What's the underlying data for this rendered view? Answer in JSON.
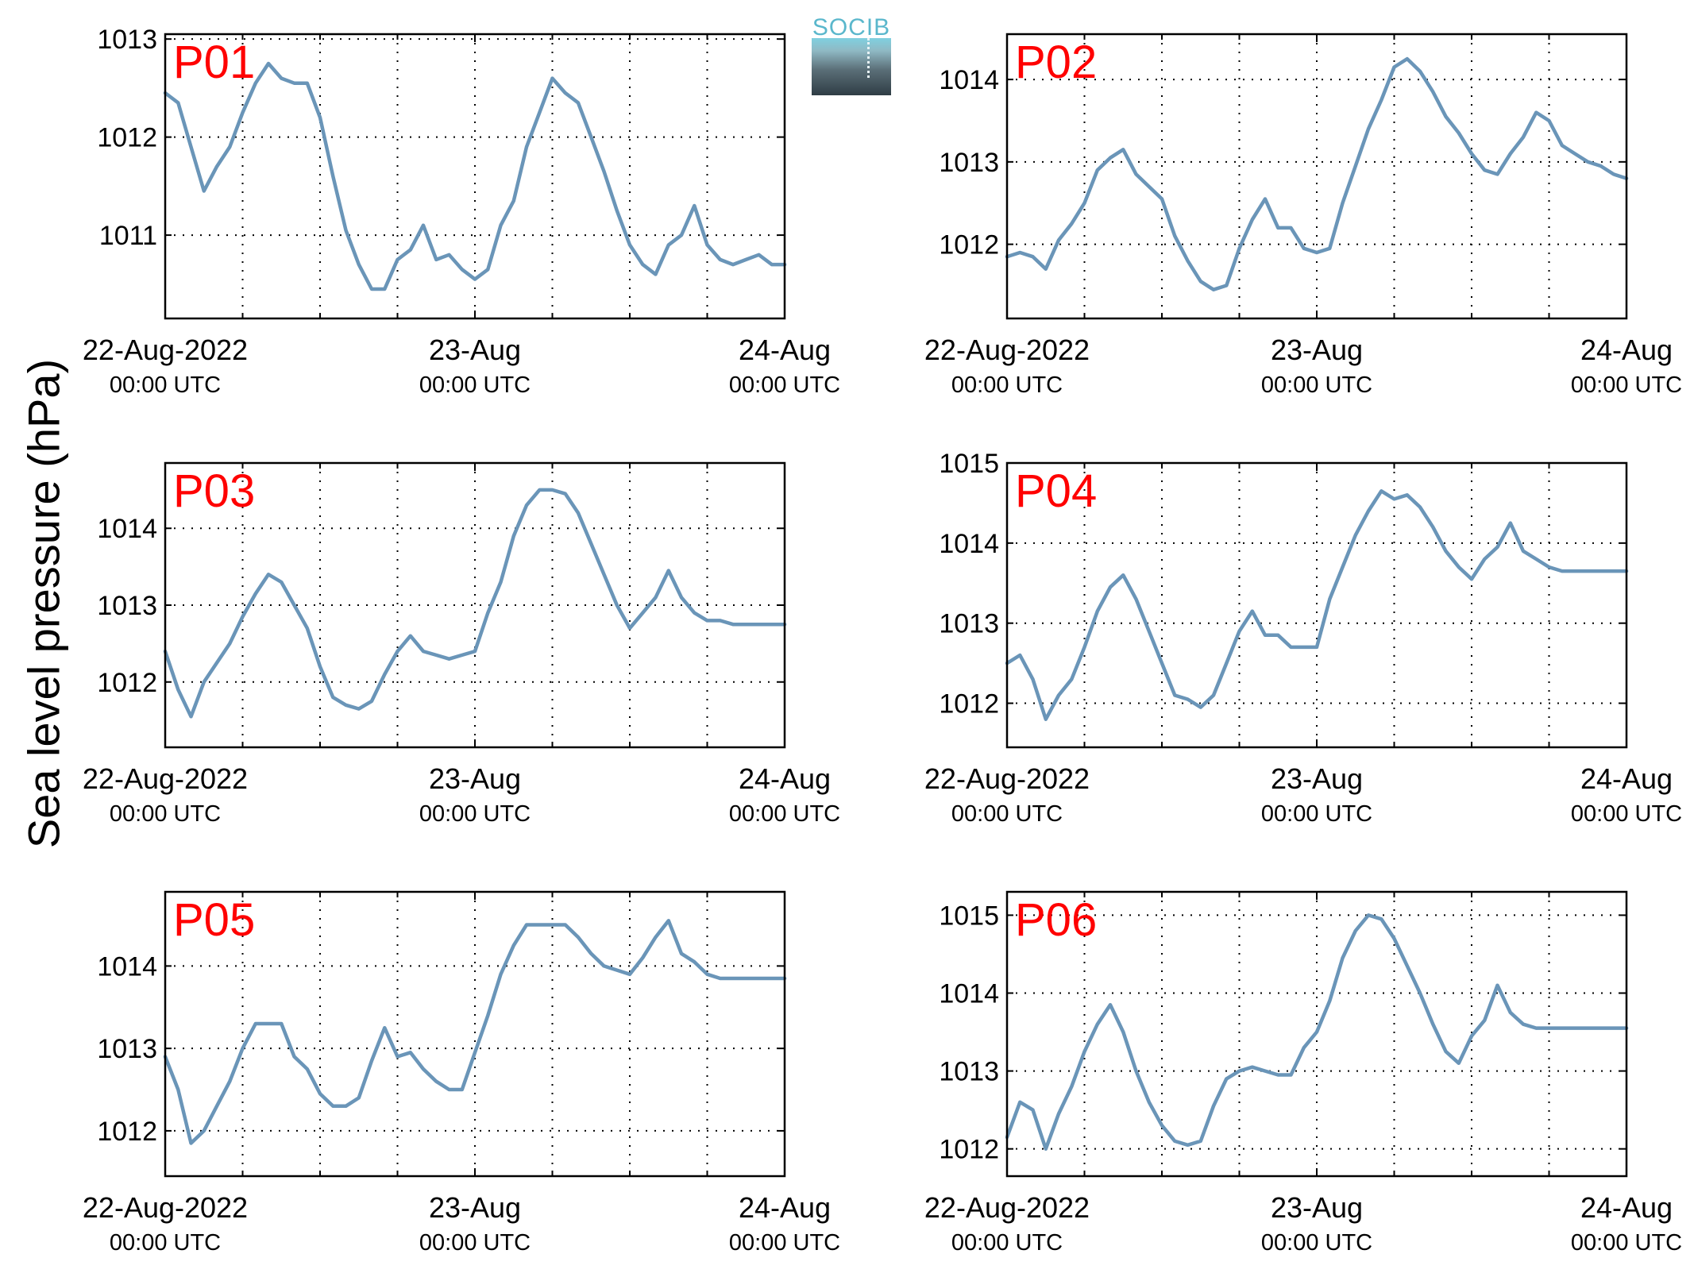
{
  "ylabel": "Sea level pressure (hPa)",
  "logo": {
    "text": "SOCIB"
  },
  "colors": {
    "line": "#6a95b8",
    "panel_label": "#ff0000",
    "grid": "#000000"
  },
  "chart_data": [
    {
      "type": "line",
      "title": "P01",
      "x_ticks": [
        {
          "label": "22-Aug-2022",
          "sub": "00:00 UTC"
        },
        {
          "label": "23-Aug",
          "sub": "00:00 UTC"
        },
        {
          "label": "24-Aug",
          "sub": "00:00 UTC"
        }
      ],
      "xlim_hours": [
        0,
        48
      ],
      "ylim": [
        1010.15,
        1013.05
      ],
      "yticks": [
        1011,
        1012,
        1013
      ],
      "grid": true,
      "series": [
        {
          "hours": [
            0,
            1,
            2,
            3,
            4,
            5,
            6,
            7,
            8,
            9,
            10,
            11,
            12,
            13,
            14,
            15,
            16,
            17,
            18,
            19,
            20,
            21,
            22,
            23,
            24,
            25,
            26,
            27,
            28,
            29,
            30,
            31,
            32,
            33,
            34,
            35,
            36,
            37,
            38,
            39,
            40,
            41,
            42,
            43,
            44,
            45,
            46,
            47,
            48
          ],
          "values": [
            1012.45,
            1012.35,
            1011.9,
            1011.45,
            1011.7,
            1011.9,
            1012.25,
            1012.55,
            1012.75,
            1012.6,
            1012.55,
            1012.55,
            1012.2,
            1011.6,
            1011.05,
            1010.7,
            1010.45,
            1010.45,
            1010.75,
            1010.85,
            1011.1,
            1010.75,
            1010.8,
            1010.65,
            1010.55,
            1010.65,
            1011.1,
            1011.35,
            1011.9,
            1012.25,
            1012.6,
            1012.45,
            1012.35,
            1012.0,
            1011.65,
            1011.25,
            1010.9,
            1010.7,
            1010.6,
            1010.9,
            1011.0,
            1011.3,
            1010.9,
            1010.75,
            1010.7,
            1010.75,
            1010.8,
            1010.7,
            1010.7
          ]
        }
      ]
    },
    {
      "type": "line",
      "title": "P02",
      "x_ticks": [
        {
          "label": "22-Aug-2022",
          "sub": "00:00 UTC"
        },
        {
          "label": "23-Aug",
          "sub": "00:00 UTC"
        },
        {
          "label": "24-Aug",
          "sub": "00:00 UTC"
        }
      ],
      "xlim_hours": [
        0,
        48
      ],
      "ylim": [
        1011.1,
        1014.55
      ],
      "yticks": [
        1012,
        1013,
        1014
      ],
      "grid": true,
      "series": [
        {
          "hours": [
            0,
            1,
            2,
            3,
            4,
            5,
            6,
            7,
            8,
            9,
            10,
            11,
            12,
            13,
            14,
            15,
            16,
            17,
            18,
            19,
            20,
            21,
            22,
            23,
            24,
            25,
            26,
            27,
            28,
            29,
            30,
            31,
            32,
            33,
            34,
            35,
            36,
            37,
            38,
            39,
            40,
            41,
            42,
            43,
            44,
            45,
            46,
            47,
            48
          ],
          "values": [
            1011.85,
            1011.9,
            1011.85,
            1011.7,
            1012.05,
            1012.25,
            1012.5,
            1012.9,
            1013.05,
            1013.15,
            1012.85,
            1012.7,
            1012.55,
            1012.1,
            1011.8,
            1011.55,
            1011.45,
            1011.5,
            1011.95,
            1012.3,
            1012.55,
            1012.2,
            1012.2,
            1011.95,
            1011.9,
            1011.95,
            1012.5,
            1012.95,
            1013.4,
            1013.75,
            1014.15,
            1014.25,
            1014.1,
            1013.85,
            1013.55,
            1013.35,
            1013.1,
            1012.9,
            1012.85,
            1013.1,
            1013.3,
            1013.6,
            1013.5,
            1013.2,
            1013.1,
            1013.0,
            1012.95,
            1012.85,
            1012.8
          ]
        }
      ]
    },
    {
      "type": "line",
      "title": "P03",
      "x_ticks": [
        {
          "label": "22-Aug-2022",
          "sub": "00:00 UTC"
        },
        {
          "label": "23-Aug",
          "sub": "00:00 UTC"
        },
        {
          "label": "24-Aug",
          "sub": "00:00 UTC"
        }
      ],
      "xlim_hours": [
        0,
        48
      ],
      "ylim": [
        1011.15,
        1014.85
      ],
      "yticks": [
        1012,
        1013,
        1014
      ],
      "grid": true,
      "series": [
        {
          "hours": [
            0,
            1,
            2,
            3,
            4,
            5,
            6,
            7,
            8,
            9,
            10,
            11,
            12,
            13,
            14,
            15,
            16,
            17,
            18,
            19,
            20,
            21,
            22,
            23,
            24,
            25,
            26,
            27,
            28,
            29,
            30,
            31,
            32,
            33,
            34,
            35,
            36,
            37,
            38,
            39,
            40,
            41,
            42,
            43,
            44,
            45,
            46,
            47,
            48
          ],
          "values": [
            1012.4,
            1011.9,
            1011.55,
            1012.0,
            1012.25,
            1012.5,
            1012.85,
            1013.15,
            1013.4,
            1013.3,
            1013.0,
            1012.7,
            1012.2,
            1011.8,
            1011.7,
            1011.65,
            1011.75,
            1012.1,
            1012.4,
            1012.6,
            1012.4,
            1012.35,
            1012.3,
            1012.35,
            1012.4,
            1012.9,
            1013.3,
            1013.9,
            1014.3,
            1014.5,
            1014.5,
            1014.45,
            1014.2,
            1013.8,
            1013.4,
            1013.0,
            1012.7,
            1012.9,
            1013.1,
            1013.45,
            1013.1,
            1012.9,
            1012.8,
            1012.8,
            1012.75,
            1012.75,
            1012.75,
            1012.75,
            1012.75
          ]
        }
      ]
    },
    {
      "type": "line",
      "title": "P04",
      "x_ticks": [
        {
          "label": "22-Aug-2022",
          "sub": "00:00 UTC"
        },
        {
          "label": "23-Aug",
          "sub": "00:00 UTC"
        },
        {
          "label": "24-Aug",
          "sub": "00:00 UTC"
        }
      ],
      "xlim_hours": [
        0,
        48
      ],
      "ylim": [
        1011.45,
        1015.0
      ],
      "yticks": [
        1012,
        1013,
        1014,
        1015
      ],
      "grid": true,
      "series": [
        {
          "hours": [
            0,
            1,
            2,
            3,
            4,
            5,
            6,
            7,
            8,
            9,
            10,
            11,
            12,
            13,
            14,
            15,
            16,
            17,
            18,
            19,
            20,
            21,
            22,
            23,
            24,
            25,
            26,
            27,
            28,
            29,
            30,
            31,
            32,
            33,
            34,
            35,
            36,
            37,
            38,
            39,
            40,
            41,
            42,
            43,
            44,
            45,
            46,
            47,
            48
          ],
          "values": [
            1012.5,
            1012.6,
            1012.3,
            1011.8,
            1012.1,
            1012.3,
            1012.7,
            1013.15,
            1013.45,
            1013.6,
            1013.3,
            1012.9,
            1012.5,
            1012.1,
            1012.05,
            1011.95,
            1012.1,
            1012.5,
            1012.9,
            1013.15,
            1012.85,
            1012.85,
            1012.7,
            1012.7,
            1012.7,
            1013.3,
            1013.7,
            1014.1,
            1014.4,
            1014.65,
            1014.55,
            1014.6,
            1014.45,
            1014.2,
            1013.9,
            1013.7,
            1013.55,
            1013.8,
            1013.95,
            1014.25,
            1013.9,
            1013.8,
            1013.7,
            1013.65,
            1013.65,
            1013.65,
            1013.65,
            1013.65,
            1013.65
          ]
        }
      ]
    },
    {
      "type": "line",
      "title": "P05",
      "x_ticks": [
        {
          "label": "22-Aug-2022",
          "sub": "00:00 UTC"
        },
        {
          "label": "23-Aug",
          "sub": "00:00 UTC"
        },
        {
          "label": "24-Aug",
          "sub": "00:00 UTC"
        }
      ],
      "xlim_hours": [
        0,
        48
      ],
      "ylim": [
        1011.45,
        1014.9
      ],
      "yticks": [
        1012,
        1013,
        1014
      ],
      "grid": true,
      "series": [
        {
          "hours": [
            0,
            1,
            2,
            3,
            4,
            5,
            6,
            7,
            8,
            9,
            10,
            11,
            12,
            13,
            14,
            15,
            16,
            17,
            18,
            19,
            20,
            21,
            22,
            23,
            24,
            25,
            26,
            27,
            28,
            29,
            30,
            31,
            32,
            33,
            34,
            35,
            36,
            37,
            38,
            39,
            40,
            41,
            42,
            43,
            44,
            45,
            46,
            47,
            48
          ],
          "values": [
            1012.9,
            1012.5,
            1011.85,
            1012.0,
            1012.3,
            1012.6,
            1013.0,
            1013.3,
            1013.3,
            1013.3,
            1012.9,
            1012.75,
            1012.45,
            1012.3,
            1012.3,
            1012.4,
            1012.85,
            1013.25,
            1012.9,
            1012.95,
            1012.75,
            1012.6,
            1012.5,
            1012.5,
            1012.95,
            1013.4,
            1013.9,
            1014.25,
            1014.5,
            1014.5,
            1014.5,
            1014.5,
            1014.35,
            1014.15,
            1014.0,
            1013.95,
            1013.9,
            1014.1,
            1014.35,
            1014.55,
            1014.15,
            1014.05,
            1013.9,
            1013.85,
            1013.85,
            1013.85,
            1013.85,
            1013.85,
            1013.85
          ]
        }
      ]
    },
    {
      "type": "line",
      "title": "P06",
      "x_ticks": [
        {
          "label": "22-Aug-2022",
          "sub": "00:00 UTC"
        },
        {
          "label": "23-Aug",
          "sub": "00:00 UTC"
        },
        {
          "label": "24-Aug",
          "sub": "00:00 UTC"
        }
      ],
      "xlim_hours": [
        0,
        48
      ],
      "ylim": [
        1011.65,
        1015.3
      ],
      "yticks": [
        1012,
        1013,
        1014,
        1015
      ],
      "grid": true,
      "series": [
        {
          "hours": [
            0,
            1,
            2,
            3,
            4,
            5,
            6,
            7,
            8,
            9,
            10,
            11,
            12,
            13,
            14,
            15,
            16,
            17,
            18,
            19,
            20,
            21,
            22,
            23,
            24,
            25,
            26,
            27,
            28,
            29,
            30,
            31,
            32,
            33,
            34,
            35,
            36,
            37,
            38,
            39,
            40,
            41,
            42,
            43,
            44,
            45,
            46,
            47,
            48
          ],
          "values": [
            1012.15,
            1012.6,
            1012.5,
            1012.0,
            1012.45,
            1012.8,
            1013.25,
            1013.6,
            1013.85,
            1013.5,
            1013.0,
            1012.6,
            1012.3,
            1012.1,
            1012.05,
            1012.1,
            1012.55,
            1012.9,
            1013.0,
            1013.05,
            1013.0,
            1012.95,
            1012.95,
            1013.3,
            1013.5,
            1013.9,
            1014.45,
            1014.8,
            1015.0,
            1014.95,
            1014.7,
            1014.35,
            1014.0,
            1013.6,
            1013.25,
            1013.1,
            1013.45,
            1013.65,
            1014.1,
            1013.75,
            1013.6,
            1013.55,
            1013.55,
            1013.55,
            1013.55,
            1013.55,
            1013.55,
            1013.55,
            1013.55
          ]
        }
      ]
    }
  ]
}
